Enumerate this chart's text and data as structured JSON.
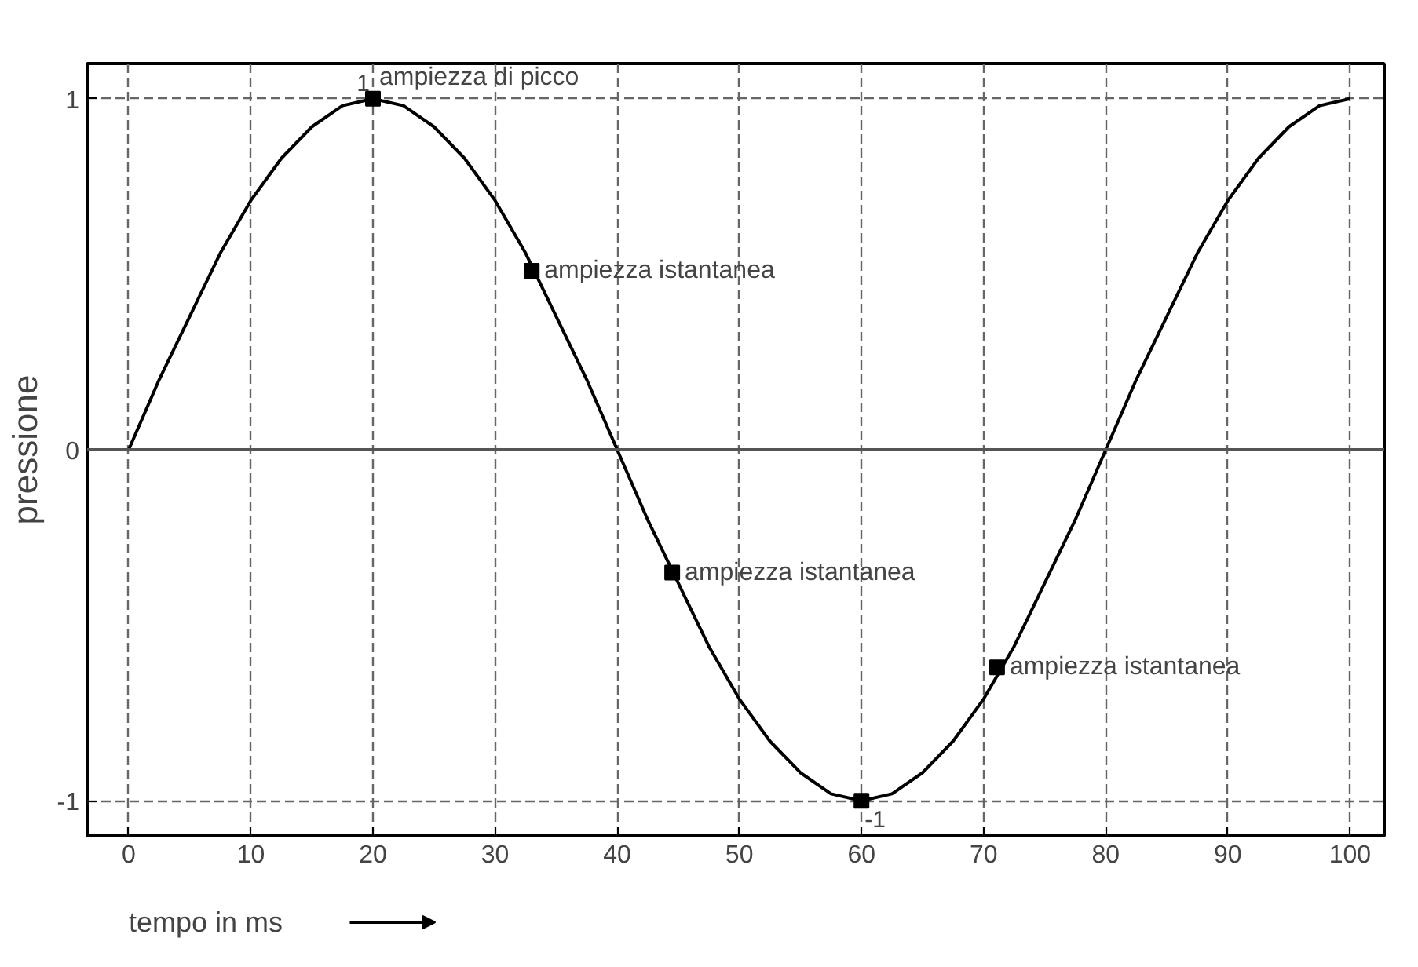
{
  "chart_data": {
    "type": "line",
    "xlabel": "tempo in ms",
    "ylabel": "pressione",
    "xlim": [
      -3.4,
      102.8
    ],
    "ylim": [
      -1.1,
      1.1
    ],
    "xticks": [
      0,
      10,
      20,
      30,
      40,
      50,
      60,
      70,
      80,
      90,
      100
    ],
    "yticks": [
      -1,
      0,
      1
    ],
    "grid": true,
    "ref_lines": [
      {
        "axis": "y",
        "value": 0,
        "color": "#555555",
        "line_style": "solid"
      }
    ],
    "series": [
      {
        "type": "line",
        "color": "#000000",
        "marker": "none",
        "x": [
          0,
          2.5,
          5,
          7.5,
          10,
          12.5,
          15,
          17.5,
          20,
          22.5,
          25,
          27.5,
          30,
          32.5,
          35,
          37.5,
          40,
          42.5,
          45,
          47.5,
          50,
          52.5,
          55,
          57.5,
          60,
          62.5,
          65,
          67.5,
          70,
          72.5,
          75,
          77.5,
          80,
          82.5,
          85,
          87.5,
          90,
          92.5,
          95,
          97.5,
          100
        ],
        "values": [
          0,
          0.2,
          0.38,
          0.56,
          0.71,
          0.83,
          0.92,
          0.98,
          1,
          0.98,
          0.92,
          0.83,
          0.71,
          0.56,
          0.38,
          0.2,
          0,
          -0.2,
          -0.38,
          -0.56,
          -0.71,
          -0.83,
          -0.92,
          -0.98,
          -1,
          -0.98,
          -0.92,
          -0.83,
          -0.71,
          -0.56,
          -0.38,
          -0.2,
          0,
          0.2,
          0.38,
          0.56,
          0.71,
          0.83,
          0.92,
          0.98,
          1
        ]
      },
      {
        "type": "scatter",
        "color": "#000000",
        "marker": "square",
        "x": [
          20,
          33,
          44.5,
          60,
          71.1
        ],
        "values": [
          1,
          0.51,
          -0.35,
          -1,
          -0.62
        ],
        "value_labels": [
          "1",
          null,
          null,
          "-1",
          null
        ]
      }
    ],
    "annotations": [
      {
        "text": "ampiezza di picco",
        "x": 20,
        "y": 1
      },
      {
        "text": "ampiezza istantanea",
        "x": 33,
        "y": 0.51
      },
      {
        "text": "ampiezza istantanea",
        "x": 44.5,
        "y": -0.35
      },
      {
        "text": "ampiezza istantanea",
        "x": 71.1,
        "y": -0.62
      }
    ]
  }
}
